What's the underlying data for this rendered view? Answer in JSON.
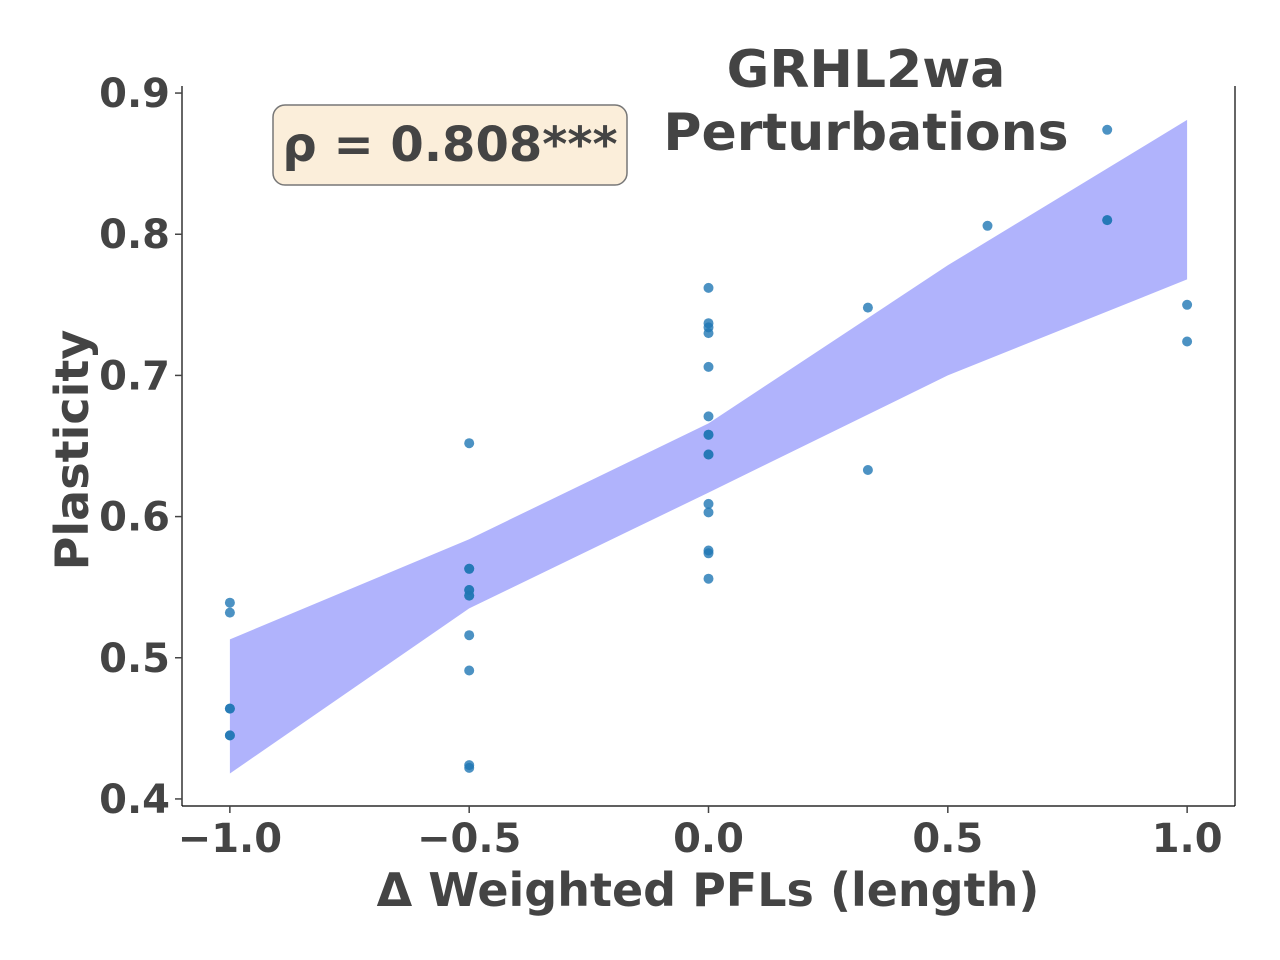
{
  "chart_data": {
    "type": "scatter",
    "title_lines": [
      "GRHL2wa",
      "Perturbations"
    ],
    "xlabel": "Δ Weighted PFLs (length)",
    "ylabel": "Plasticity",
    "xlim": [
      -1.1,
      1.1
    ],
    "ylim": [
      0.395,
      0.905
    ],
    "x_ticks": [
      -1.0,
      -0.5,
      0.0,
      0.5,
      1.0
    ],
    "x_tick_labels": [
      "−1.0",
      "−0.5",
      "0.0",
      "0.5",
      "1.0"
    ],
    "y_ticks": [
      0.4,
      0.5,
      0.6,
      0.7,
      0.8,
      0.9
    ],
    "y_tick_labels": [
      "0.4",
      "0.5",
      "0.6",
      "0.7",
      "0.8",
      "0.9"
    ],
    "grid": false,
    "annotation": "ρ = 0.808***",
    "colors": {
      "points": "#1f77b4",
      "points_overlap": "#1f4fd8",
      "band": "#b0b3fc",
      "annotation_bg": "#fbeeda",
      "text": "#444444"
    },
    "points": [
      {
        "x": -1.0,
        "y": 0.539
      },
      {
        "x": -1.0,
        "y": 0.532
      },
      {
        "x": -1.0,
        "y": 0.464
      },
      {
        "x": -1.0,
        "y": 0.464
      },
      {
        "x": -1.0,
        "y": 0.445
      },
      {
        "x": -1.0,
        "y": 0.445
      },
      {
        "x": -0.5,
        "y": 0.652
      },
      {
        "x": -0.5,
        "y": 0.563
      },
      {
        "x": -0.5,
        "y": 0.563
      },
      {
        "x": -0.5,
        "y": 0.548
      },
      {
        "x": -0.5,
        "y": 0.548
      },
      {
        "x": -0.5,
        "y": 0.544
      },
      {
        "x": -0.5,
        "y": 0.544
      },
      {
        "x": -0.5,
        "y": 0.516
      },
      {
        "x": -0.5,
        "y": 0.491
      },
      {
        "x": -0.5,
        "y": 0.424
      },
      {
        "x": -0.5,
        "y": 0.422
      },
      {
        "x": 0.0,
        "y": 0.762
      },
      {
        "x": 0.0,
        "y": 0.737
      },
      {
        "x": 0.0,
        "y": 0.734
      },
      {
        "x": 0.0,
        "y": 0.73
      },
      {
        "x": 0.0,
        "y": 0.706
      },
      {
        "x": 0.0,
        "y": 0.671
      },
      {
        "x": 0.0,
        "y": 0.658
      },
      {
        "x": 0.0,
        "y": 0.658
      },
      {
        "x": 0.0,
        "y": 0.644
      },
      {
        "x": 0.0,
        "y": 0.644
      },
      {
        "x": 0.0,
        "y": 0.609
      },
      {
        "x": 0.0,
        "y": 0.603
      },
      {
        "x": 0.0,
        "y": 0.576
      },
      {
        "x": 0.0,
        "y": 0.574
      },
      {
        "x": 0.0,
        "y": 0.556
      },
      {
        "x": 0.333,
        "y": 0.748
      },
      {
        "x": 0.333,
        "y": 0.633
      },
      {
        "x": 0.583,
        "y": 0.806
      },
      {
        "x": 0.833,
        "y": 0.874
      },
      {
        "x": 0.833,
        "y": 0.81
      },
      {
        "x": 0.833,
        "y": 0.81
      },
      {
        "x": 1.0,
        "y": 0.75
      },
      {
        "x": 1.0,
        "y": 0.724
      }
    ],
    "confidence_band": {
      "x": [
        -1.0,
        -0.5,
        0.0,
        0.5,
        1.0
      ],
      "lower": [
        0.418,
        0.535,
        0.617,
        0.7,
        0.768
      ],
      "upper": [
        0.513,
        0.584,
        0.666,
        0.778,
        0.881
      ]
    }
  }
}
